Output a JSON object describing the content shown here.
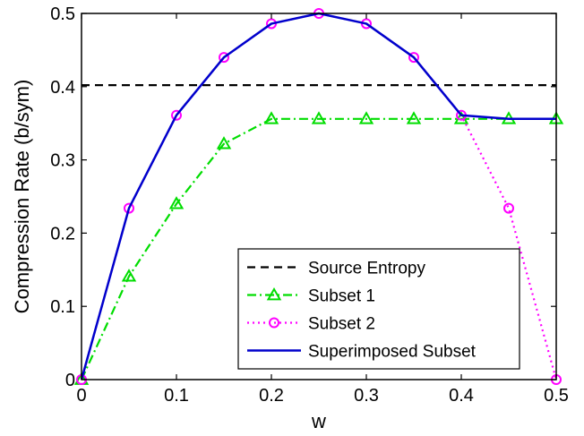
{
  "chart_data": {
    "type": "line",
    "xlabel": "w",
    "ylabel": "Compression Rate (b/sym)",
    "xlim": [
      0,
      0.5
    ],
    "ylim": [
      0,
      0.5
    ],
    "xticks": [
      "0",
      "0.1",
      "0.2",
      "0.3",
      "0.4",
      "0.5"
    ],
    "yticks": [
      "0",
      "0.1",
      "0.2",
      "0.3",
      "0.4",
      "0.5"
    ],
    "grid": false,
    "legend_position": "bottom-right",
    "series": [
      {
        "name": "Source Entropy",
        "color": "#000000",
        "line_style": "dashed",
        "marker": "none",
        "x": [
          0,
          0.5
        ],
        "y": [
          0.402,
          0.402
        ]
      },
      {
        "name": "Subset 1",
        "color": "#00dd00",
        "line_style": "dash-dot",
        "marker": "triangle",
        "x": [
          0,
          0.05,
          0.1,
          0.15,
          0.2,
          0.25,
          0.3,
          0.35,
          0.4,
          0.45,
          0.5
        ],
        "y": [
          0,
          0.141,
          0.24,
          0.322,
          0.356,
          0.356,
          0.356,
          0.356,
          0.356,
          0.356,
          0.356
        ]
      },
      {
        "name": "Subset 2",
        "color": "#ff00ff",
        "line_style": "dotted",
        "marker": "circle",
        "x": [
          0,
          0.05,
          0.1,
          0.15,
          0.2,
          0.25,
          0.3,
          0.35,
          0.4,
          0.45,
          0.5
        ],
        "y": [
          0,
          0.234,
          0.361,
          0.44,
          0.486,
          0.5,
          0.486,
          0.44,
          0.361,
          0.234,
          0
        ]
      },
      {
        "name": "Superimposed Subset",
        "color": "#0000cc",
        "line_style": "solid",
        "marker": "none",
        "x": [
          0,
          0.05,
          0.1,
          0.15,
          0.2,
          0.25,
          0.3,
          0.35,
          0.4,
          0.45,
          0.5
        ],
        "y": [
          0,
          0.234,
          0.361,
          0.44,
          0.486,
          0.5,
          0.486,
          0.44,
          0.361,
          0.356,
          0.356
        ]
      }
    ]
  }
}
